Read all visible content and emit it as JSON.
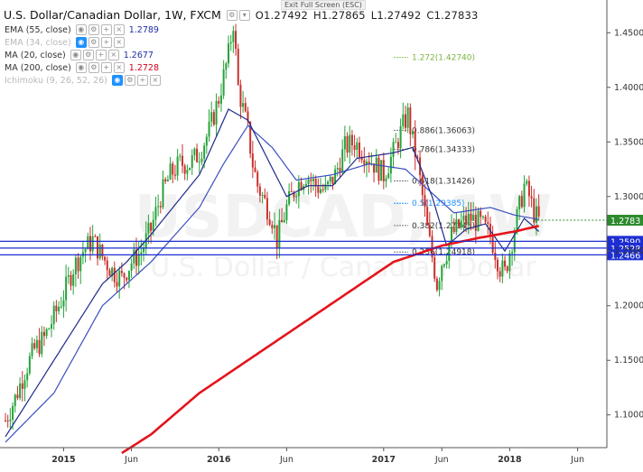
{
  "header": {
    "symbol": "U.S. Dollar/Canadian Dollar, 1W, FXCM",
    "open": "O1.27492",
    "high": "H1.27865",
    "low": "L1.27492",
    "close": "C1.27833"
  },
  "exit_fullscreen_label": "Exit Full Screen (ESC)",
  "indicators": [
    {
      "label": "EMA (55, close)",
      "value": "1.2789",
      "color": "#1e2ea5",
      "dim": false
    },
    {
      "label": "EMA (34, close)",
      "value": "",
      "color": "#1e2ea5",
      "dim": true
    },
    {
      "label": "MA (20, close)",
      "value": "1.2677",
      "color": "#1e2ea5",
      "dim": false
    },
    {
      "label": "MA (200, close)",
      "value": "1.2728",
      "color": "#d0021b",
      "dim": false
    },
    {
      "label": "Ichimoku (9, 26, 52, 26)",
      "value": "",
      "color": "#1e90ff",
      "dim": true
    }
  ],
  "colors": {
    "up": "#26a33a",
    "down": "#c9302c",
    "ema55": "#3a4fc0",
    "ma20": "#1e2a8a",
    "ma200": "#e4141b",
    "hline": "#1d2ed1",
    "current": "#2d8a2d"
  },
  "chart_data": {
    "type": "candlestick",
    "title": "U.S. Dollar/Canadian Dollar, 1W, FXCM",
    "watermark": [
      "USDCAD, 1W",
      "U.S. Dollar / Canadian Dollar"
    ],
    "x_ticks": [
      "2015",
      "Jun",
      "2016",
      "Jun",
      "2017",
      "Jun",
      "2018",
      "Jun"
    ],
    "y_ticks": [
      "1.4500",
      "1.4000",
      "1.3500",
      "1.3000",
      "1.2500",
      "1.2000",
      "1.1500",
      "1.1000"
    ],
    "ylim": [
      1.07,
      1.48
    ],
    "price_path": [
      [
        0,
        1.095
      ],
      [
        4,
        1.115
      ],
      [
        8,
        1.14
      ],
      [
        12,
        1.16
      ],
      [
        16,
        1.17
      ],
      [
        20,
        1.19
      ],
      [
        24,
        1.21
      ],
      [
        28,
        1.235
      ],
      [
        32,
        1.25
      ],
      [
        36,
        1.26
      ],
      [
        40,
        1.245
      ],
      [
        44,
        1.232
      ],
      [
        48,
        1.225
      ],
      [
        52,
        1.24
      ],
      [
        56,
        1.25
      ],
      [
        60,
        1.27
      ],
      [
        64,
        1.3
      ],
      [
        68,
        1.32
      ],
      [
        72,
        1.33
      ],
      [
        76,
        1.33
      ],
      [
        80,
        1.34
      ],
      [
        84,
        1.36
      ],
      [
        88,
        1.39
      ],
      [
        92,
        1.43
      ],
      [
        94,
        1.46
      ],
      [
        96,
        1.4
      ],
      [
        98,
        1.38
      ],
      [
        100,
        1.36
      ],
      [
        102,
        1.33
      ],
      [
        104,
        1.31
      ],
      [
        106,
        1.3
      ],
      [
        108,
        1.29
      ],
      [
        110,
        1.28
      ],
      [
        112,
        1.26
      ],
      [
        114,
        1.275
      ],
      [
        116,
        1.29
      ],
      [
        118,
        1.3
      ],
      [
        120,
        1.31
      ],
      [
        124,
        1.32
      ],
      [
        128,
        1.31
      ],
      [
        132,
        1.305
      ],
      [
        136,
        1.32
      ],
      [
        140,
        1.345
      ],
      [
        144,
        1.35
      ],
      [
        148,
        1.34
      ],
      [
        152,
        1.33
      ],
      [
        156,
        1.32
      ],
      [
        160,
        1.34
      ],
      [
        164,
        1.365
      ],
      [
        166,
        1.375
      ],
      [
        168,
        1.35
      ],
      [
        170,
        1.33
      ],
      [
        172,
        1.3
      ],
      [
        174,
        1.27
      ],
      [
        176,
        1.245
      ],
      [
        178,
        1.22
      ],
      [
        180,
        1.24
      ],
      [
        182,
        1.25
      ],
      [
        184,
        1.265
      ],
      [
        188,
        1.275
      ],
      [
        192,
        1.28
      ],
      [
        196,
        1.275
      ],
      [
        200,
        1.265
      ],
      [
        202,
        1.25
      ],
      [
        204,
        1.235
      ],
      [
        206,
        1.23
      ],
      [
        208,
        1.25
      ],
      [
        210,
        1.27
      ],
      [
        212,
        1.29
      ],
      [
        214,
        1.31
      ],
      [
        216,
        1.3
      ],
      [
        218,
        1.285
      ],
      [
        220,
        1.278
      ]
    ],
    "ema55_path": [
      [
        0,
        1.075
      ],
      [
        20,
        1.12
      ],
      [
        40,
        1.2
      ],
      [
        60,
        1.24
      ],
      [
        80,
        1.29
      ],
      [
        90,
        1.33
      ],
      [
        100,
        1.365
      ],
      [
        110,
        1.345
      ],
      [
        120,
        1.315
      ],
      [
        135,
        1.32
      ],
      [
        150,
        1.33
      ],
      [
        165,
        1.325
      ],
      [
        175,
        1.305
      ],
      [
        185,
        1.285
      ],
      [
        200,
        1.29
      ],
      [
        210,
        1.283
      ],
      [
        220,
        1.279
      ]
    ],
    "ma20_path": [
      [
        0,
        1.08
      ],
      [
        20,
        1.15
      ],
      [
        40,
        1.22
      ],
      [
        50,
        1.24
      ],
      [
        60,
        1.265
      ],
      [
        80,
        1.32
      ],
      [
        92,
        1.38
      ],
      [
        100,
        1.37
      ],
      [
        108,
        1.335
      ],
      [
        116,
        1.3
      ],
      [
        125,
        1.31
      ],
      [
        135,
        1.31
      ],
      [
        145,
        1.335
      ],
      [
        160,
        1.34
      ],
      [
        168,
        1.345
      ],
      [
        176,
        1.3
      ],
      [
        182,
        1.255
      ],
      [
        190,
        1.27
      ],
      [
        198,
        1.275
      ],
      [
        206,
        1.25
      ],
      [
        214,
        1.28
      ],
      [
        220,
        1.268
      ]
    ],
    "ma200_path": [
      [
        48,
        1.065
      ],
      [
        60,
        1.082
      ],
      [
        80,
        1.12
      ],
      [
        100,
        1.15
      ],
      [
        120,
        1.18
      ],
      [
        140,
        1.21
      ],
      [
        160,
        1.24
      ],
      [
        180,
        1.255
      ],
      [
        195,
        1.262
      ],
      [
        210,
        1.268
      ],
      [
        220,
        1.273
      ]
    ],
    "x_tick_index": [
      24,
      52,
      88,
      116,
      156,
      180,
      208,
      236
    ],
    "horizontal_levels": [
      "1.2590",
      "1.2528",
      "1.2466"
    ],
    "current_price": "1.2783",
    "fib_levels": [
      {
        "label": "1.272(1.42740)",
        "price": 1.4274,
        "color": "#8bc34a"
      },
      {
        "label": "0.886(1.36063)",
        "price": 1.36063,
        "color": "#777"
      },
      {
        "label": "0.786(1.34333)",
        "price": 1.34333,
        "color": "#777"
      },
      {
        "label": "0.618(1.31426)",
        "price": 1.31426,
        "color": "#777"
      },
      {
        "label": "0.5(1.29385)",
        "price": 1.29385,
        "color": "#1e90ff"
      },
      {
        "label": "0.382(1.27345)",
        "price": 1.27345,
        "color": "#777"
      },
      {
        "label": "0.236(1.24918)",
        "price": 1.24918,
        "color": "#777"
      }
    ]
  }
}
